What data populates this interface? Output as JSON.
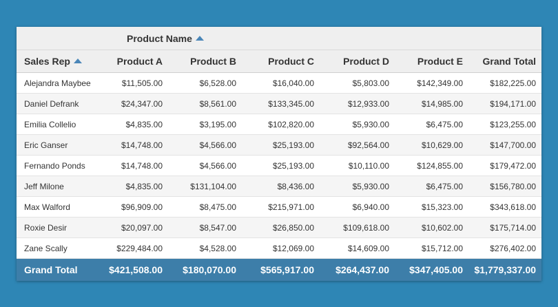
{
  "pivot": {
    "column_field": "Product Name",
    "row_field": "Sales Rep",
    "columns": [
      "Product A",
      "Product B",
      "Product C",
      "Product D",
      "Product E",
      "Grand Total"
    ],
    "rows": [
      {
        "rep": "Alejandra Maybee",
        "values": [
          "$11,505.00",
          "$6,528.00",
          "$16,040.00",
          "$5,803.00",
          "$142,349.00",
          "$182,225.00"
        ]
      },
      {
        "rep": "Daniel Defrank",
        "values": [
          "$24,347.00",
          "$8,561.00",
          "$133,345.00",
          "$12,933.00",
          "$14,985.00",
          "$194,171.00"
        ]
      },
      {
        "rep": "Emilia Collelio",
        "values": [
          "$4,835.00",
          "$3,195.00",
          "$102,820.00",
          "$5,930.00",
          "$6,475.00",
          "$123,255.00"
        ]
      },
      {
        "rep": "Eric Ganser",
        "values": [
          "$14,748.00",
          "$4,566.00",
          "$25,193.00",
          "$92,564.00",
          "$10,629.00",
          "$147,700.00"
        ]
      },
      {
        "rep": "Fernando Ponds",
        "values": [
          "$14,748.00",
          "$4,566.00",
          "$25,193.00",
          "$10,110.00",
          "$124,855.00",
          "$179,472.00"
        ]
      },
      {
        "rep": "Jeff Milone",
        "values": [
          "$4,835.00",
          "$131,104.00",
          "$8,436.00",
          "$5,930.00",
          "$6,475.00",
          "$156,780.00"
        ]
      },
      {
        "rep": "Max Walford",
        "values": [
          "$96,909.00",
          "$8,475.00",
          "$215,971.00",
          "$6,940.00",
          "$15,323.00",
          "$343,618.00"
        ]
      },
      {
        "rep": "Roxie Desir",
        "values": [
          "$20,097.00",
          "$8,547.00",
          "$26,850.00",
          "$109,618.00",
          "$10,602.00",
          "$175,714.00"
        ]
      },
      {
        "rep": "Zane Scally",
        "values": [
          "$229,484.00",
          "$4,528.00",
          "$12,069.00",
          "$14,609.00",
          "$15,712.00",
          "$276,402.00"
        ]
      }
    ],
    "grand_total": {
      "label": "Grand Total",
      "values": [
        "$421,508.00",
        "$180,070.00",
        "$565,917.00",
        "$264,437.00",
        "$347,405.00",
        "$1,779,337.00"
      ]
    },
    "icons": {
      "sort": "sort-ascending-icon"
    },
    "colors": {
      "background": "#2e86b5",
      "footer": "#3d7ea9",
      "sort_arrow": "#4a86b8"
    }
  }
}
